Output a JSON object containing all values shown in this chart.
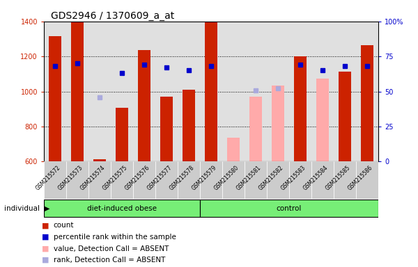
{
  "title": "GDS2946 / 1370609_a_at",
  "samples": [
    "GSM215572",
    "GSM215573",
    "GSM215574",
    "GSM215575",
    "GSM215576",
    "GSM215577",
    "GSM215578",
    "GSM215579",
    "GSM215580",
    "GSM215581",
    "GSM215582",
    "GSM215583",
    "GSM215584",
    "GSM215585",
    "GSM215586"
  ],
  "groups": [
    {
      "label": "diet-induced obese",
      "start": 0,
      "end": 7
    },
    {
      "label": "control",
      "start": 7,
      "end": 15
    }
  ],
  "count_values": [
    1315,
    1400,
    615,
    905,
    1235,
    970,
    1010,
    1400,
    null,
    970,
    1035,
    1200,
    null,
    1115,
    1265
  ],
  "rank_pct": [
    68,
    70,
    null,
    63,
    69,
    67,
    65,
    68,
    null,
    null,
    null,
    69,
    65,
    68,
    68
  ],
  "absent_count": [
    null,
    null,
    null,
    null,
    null,
    null,
    null,
    null,
    735,
    970,
    1035,
    null,
    1075,
    null,
    null
  ],
  "absent_rank_pct": [
    null,
    null,
    46,
    null,
    null,
    null,
    null,
    null,
    null,
    51,
    52,
    null,
    null,
    null,
    null
  ],
  "ylim_left": [
    600,
    1400
  ],
  "ylim_right": [
    0,
    100
  ],
  "yticks_left": [
    600,
    800,
    1000,
    1200,
    1400
  ],
  "yticks_right": [
    0,
    25,
    50,
    75,
    100
  ],
  "bar_color_present": "#cc2200",
  "bar_color_absent": "#ffaaaa",
  "rank_color_present": "#0000cc",
  "rank_color_absent": "#aaaadd",
  "background_plot": "#e0e0e0",
  "background_group": "#77ee77",
  "background_sample": "#cccccc",
  "ylabel_left_color": "#cc2200",
  "ylabel_right_color": "#0000cc",
  "bar_width": 0.55,
  "grid_lines": [
    800,
    1000,
    1200
  ],
  "legend_items": [
    {
      "color": "#cc2200",
      "label": "count"
    },
    {
      "color": "#0000cc",
      "label": "percentile rank within the sample"
    },
    {
      "color": "#ffaaaa",
      "label": "value, Detection Call = ABSENT"
    },
    {
      "color": "#aaaadd",
      "label": "rank, Detection Call = ABSENT"
    }
  ]
}
